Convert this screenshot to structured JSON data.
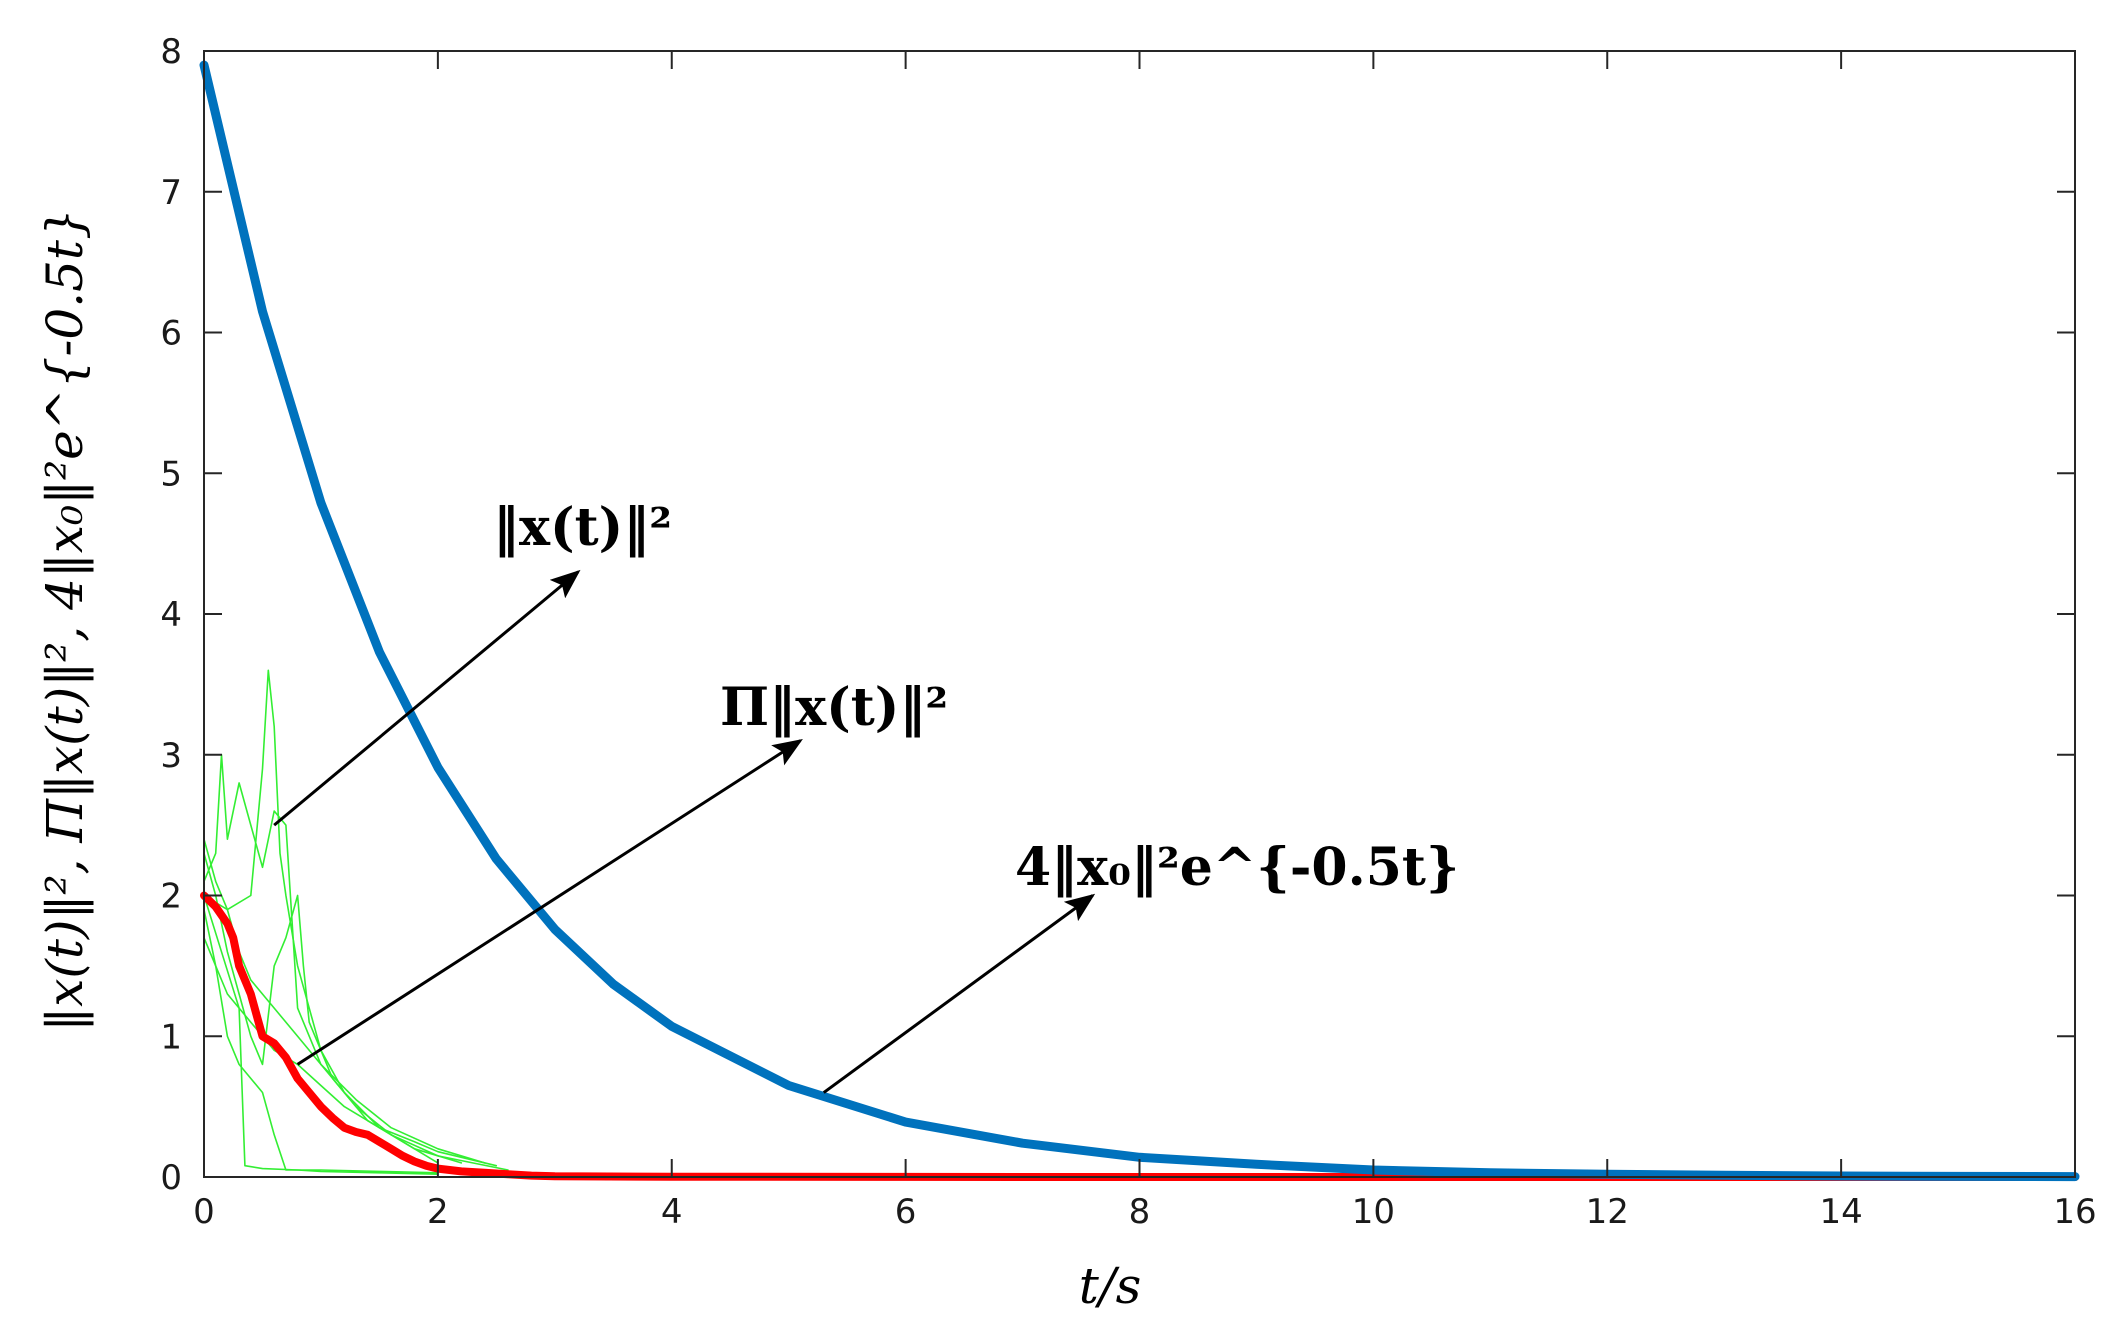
{
  "chart_data": {
    "type": "line",
    "xlabel": "t/s",
    "ylabel": "‖x(t)‖², Π‖x(t)‖², 4‖x₀‖²e^{-0.5t}",
    "xlim": [
      0,
      16
    ],
    "ylim": [
      0,
      8
    ],
    "x_ticks": [
      0,
      2,
      4,
      6,
      8,
      10,
      12,
      14,
      16
    ],
    "y_ticks": [
      0,
      1,
      2,
      3,
      4,
      5,
      6,
      7,
      8
    ],
    "x_tick_labels": [
      "0",
      "2",
      "4",
      "6",
      "8",
      "10",
      "12",
      "14",
      "16"
    ],
    "y_tick_labels": [
      "0",
      "1",
      "2",
      "3",
      "4",
      "5",
      "6",
      "7",
      "8"
    ],
    "grid": false,
    "legend": "none",
    "annotations": [
      {
        "label": "‖x(t)‖²",
        "arrow_from": [
          0.6,
          2.5
        ],
        "arrow_to": [
          3.2,
          4.3
        ]
      },
      {
        "label": "Π‖x(t)‖²",
        "arrow_from": [
          0.8,
          0.8
        ],
        "arrow_to": [
          5.1,
          3.1
        ]
      },
      {
        "label": "4‖x₀‖²e^{-0.5t}",
        "arrow_from": [
          5.3,
          0.6
        ],
        "arrow_to": [
          7.6,
          2.0
        ]
      }
    ],
    "series": [
      {
        "color": "#0072bd",
        "x": [
          0,
          0.5,
          1,
          1.5,
          2,
          2.5,
          3,
          3.5,
          4,
          5,
          6,
          7,
          8,
          9,
          10,
          11,
          12,
          13,
          14,
          15,
          16
        ],
        "y": [
          7.9,
          6.15,
          4.79,
          3.73,
          2.91,
          2.26,
          1.76,
          1.37,
          1.07,
          0.65,
          0.39,
          0.24,
          0.14,
          0.09,
          0.05,
          0.03,
          0.02,
          0.012,
          0.007,
          0.004,
          0.003
        ]
      },
      {
        "color": "#ff0000",
        "x": [
          0,
          0.1,
          0.2,
          0.25,
          0.3,
          0.4,
          0.45,
          0.5,
          0.6,
          0.7,
          0.8,
          0.9,
          1.0,
          1.1,
          1.2,
          1.3,
          1.4,
          1.5,
          1.6,
          1.7,
          1.8,
          1.9,
          2.0,
          2.2,
          2.4,
          2.6,
          2.8,
          3.0,
          4,
          6,
          8,
          10,
          12,
          14,
          16
        ],
        "y": [
          2.0,
          1.92,
          1.8,
          1.7,
          1.5,
          1.3,
          1.15,
          1.0,
          0.95,
          0.85,
          0.7,
          0.6,
          0.5,
          0.42,
          0.35,
          0.32,
          0.3,
          0.25,
          0.2,
          0.15,
          0.11,
          0.08,
          0.06,
          0.04,
          0.03,
          0.02,
          0.01,
          0.005,
          0.002,
          0.001,
          0,
          0,
          0,
          0,
          0
        ]
      },
      {
        "color": "#33ee33",
        "x": [
          0,
          0.1,
          0.15,
          0.2,
          0.3,
          0.4,
          0.5,
          0.6,
          0.7,
          0.8,
          1.0,
          1.3,
          1.6,
          2.0,
          2.6
        ],
        "y": [
          2.1,
          2.3,
          3.0,
          2.4,
          2.8,
          2.5,
          2.2,
          2.6,
          2.5,
          1.2,
          0.8,
          0.5,
          0.3,
          0.15,
          0.05
        ]
      },
      {
        "color": "#33ee33",
        "x": [
          0,
          0.2,
          0.4,
          0.5,
          0.55,
          0.6,
          0.65,
          0.7,
          0.8,
          0.9,
          1.0,
          1.2,
          1.5,
          1.8,
          2.0
        ],
        "y": [
          2.0,
          1.9,
          2.0,
          2.9,
          3.6,
          3.2,
          2.3,
          2.0,
          1.5,
          1.2,
          0.9,
          0.6,
          0.35,
          0.2,
          0.1
        ]
      },
      {
        "color": "#33ee33",
        "x": [
          0,
          0.1,
          0.2,
          0.3,
          0.4,
          0.5,
          0.6,
          0.7,
          0.8,
          0.85,
          0.9,
          1.1,
          1.4,
          1.8,
          2.2
        ],
        "y": [
          2.3,
          2.0,
          1.6,
          1.3,
          1.0,
          0.8,
          1.5,
          1.7,
          2.0,
          1.5,
          1.1,
          0.7,
          0.4,
          0.2,
          0.1
        ]
      },
      {
        "color": "#33ee33",
        "x": [
          0,
          0.15,
          0.3,
          0.35,
          0.5,
          0.8,
          1.0,
          1.5,
          2.0
        ],
        "y": [
          2.0,
          1.6,
          1.2,
          0.08,
          0.06,
          0.05,
          0.05,
          0.04,
          0.03
        ]
      },
      {
        "color": "#33ee33",
        "x": [
          0,
          0.1,
          0.2,
          0.3,
          0.4,
          0.5,
          0.6,
          0.8,
          1.0,
          1.2,
          1.5,
          1.8,
          2.0,
          2.5
        ],
        "y": [
          1.7,
          1.5,
          1.3,
          1.2,
          1.1,
          1.0,
          0.9,
          0.8,
          0.65,
          0.5,
          0.35,
          0.25,
          0.18,
          0.08
        ]
      },
      {
        "color": "#33ee33",
        "x": [
          0,
          0.1,
          0.2,
          0.3,
          0.5,
          0.6,
          0.7,
          0.8,
          1.0,
          1.5,
          2.0
        ],
        "y": [
          1.9,
          1.5,
          1.0,
          0.8,
          0.6,
          0.3,
          0.05,
          0.05,
          0.04,
          0.03,
          0.02
        ]
      },
      {
        "color": "#33ee33",
        "x": [
          0,
          0.1,
          0.2,
          0.3,
          0.4,
          0.6,
          0.8,
          1.0,
          1.3,
          1.6,
          2.0,
          2.4
        ],
        "y": [
          2.4,
          2.1,
          1.9,
          1.6,
          1.4,
          1.2,
          1.0,
          0.8,
          0.55,
          0.35,
          0.2,
          0.1
        ]
      }
    ]
  }
}
